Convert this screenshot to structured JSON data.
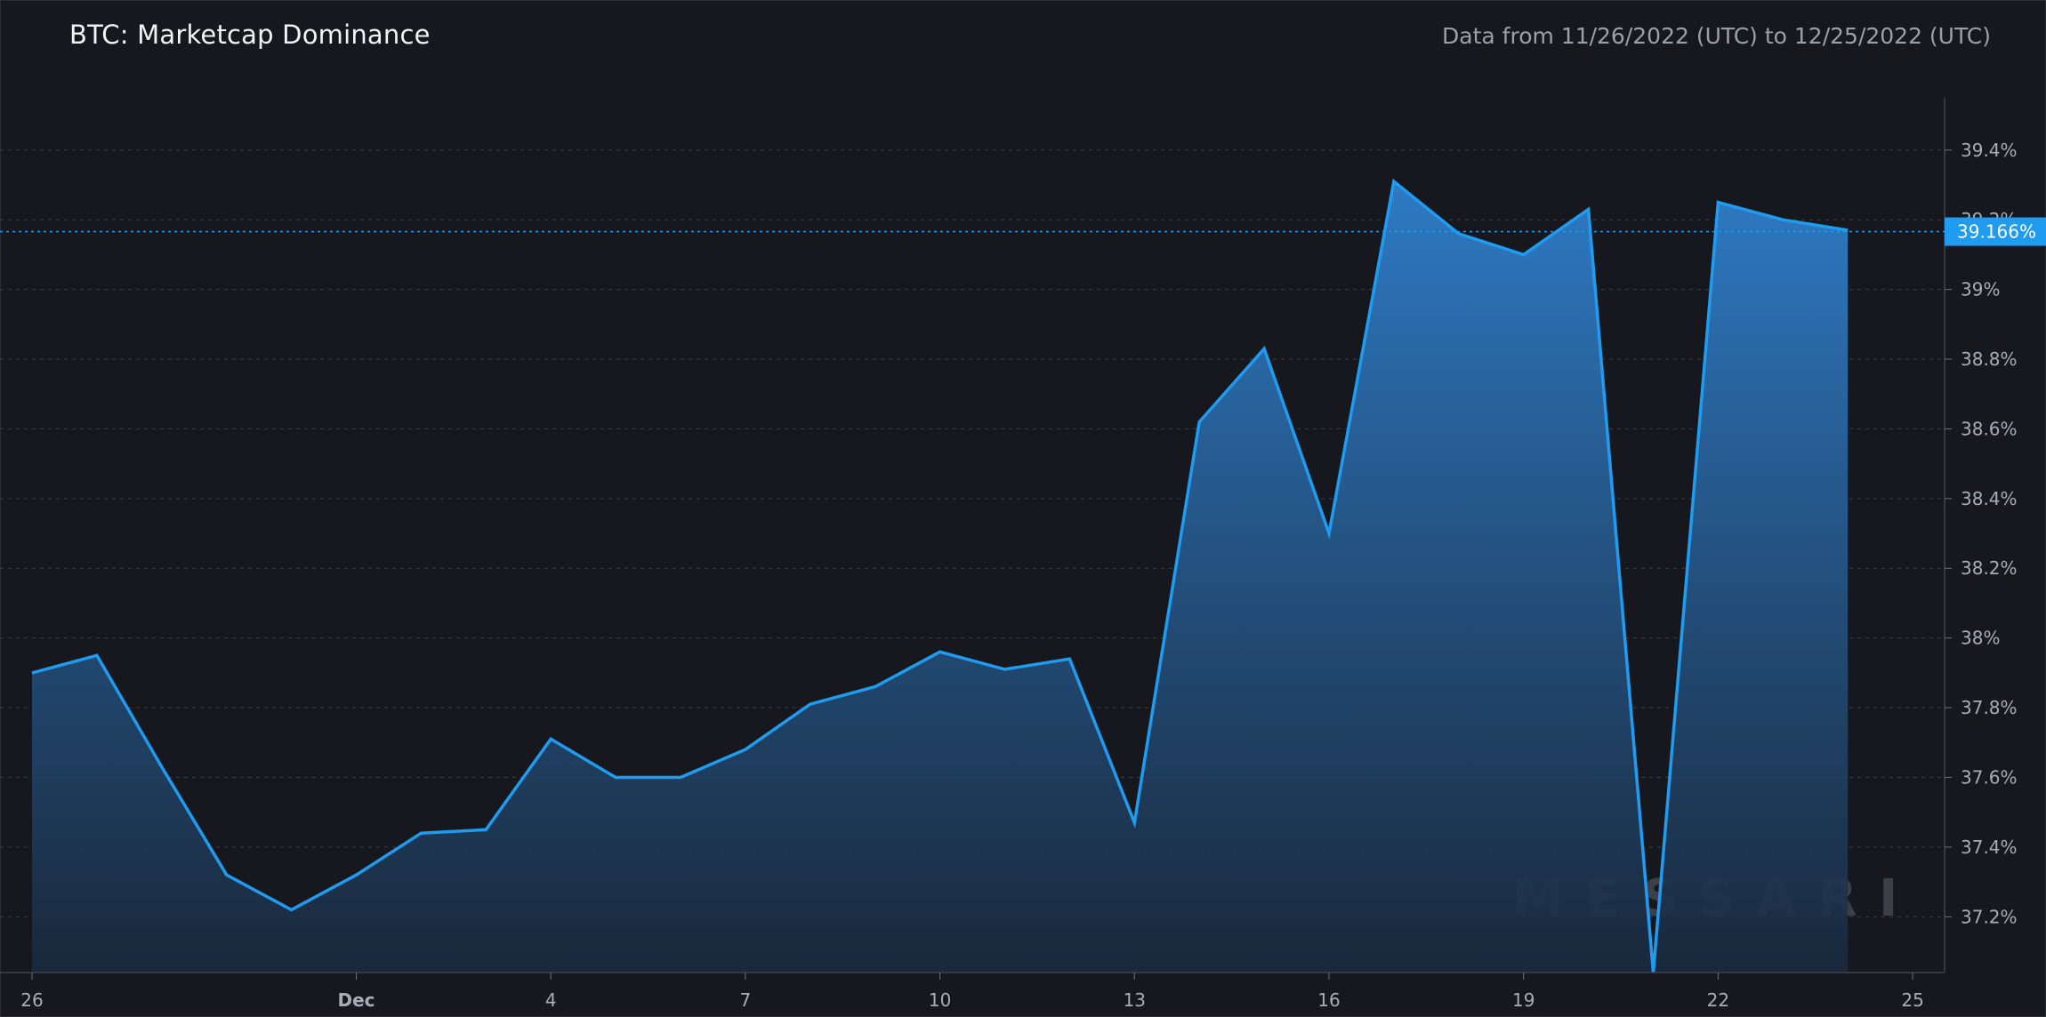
{
  "header": {
    "title": "BTC: Marketcap Dominance",
    "date_range": "Data from 11/26/2022 (UTC) to 12/25/2022 (UTC)"
  },
  "watermark": "MESSARI",
  "colors": {
    "background": "#16181e",
    "line": "#1f9bf0",
    "grid": "#3a3e47",
    "badge": "#1f9bf0"
  },
  "chart_data": {
    "type": "area",
    "title": "BTC: Marketcap Dominance",
    "xlabel": "",
    "ylabel": "",
    "x": [
      "2022-11-26",
      "2022-11-27",
      "2022-11-28",
      "2022-11-29",
      "2022-11-30",
      "2022-12-01",
      "2022-12-02",
      "2022-12-03",
      "2022-12-04",
      "2022-12-05",
      "2022-12-06",
      "2022-12-07",
      "2022-12-08",
      "2022-12-09",
      "2022-12-10",
      "2022-12-11",
      "2022-12-12",
      "2022-12-13",
      "2022-12-14",
      "2022-12-15",
      "2022-12-16",
      "2022-12-17",
      "2022-12-18",
      "2022-12-19",
      "2022-12-20",
      "2022-12-21",
      "2022-12-22",
      "2022-12-23",
      "2022-12-24"
    ],
    "values": [
      37.9,
      37.95,
      37.63,
      37.32,
      37.22,
      37.32,
      37.44,
      37.45,
      37.71,
      37.6,
      37.6,
      37.68,
      37.81,
      37.86,
      37.96,
      37.91,
      37.94,
      37.47,
      38.62,
      38.83,
      38.3,
      39.31,
      39.16,
      39.1,
      39.23,
      37.04,
      39.25,
      39.2,
      39.17
    ],
    "current_value": 39.166,
    "current_label": "39.166%",
    "ylim": [
      37.04,
      39.55
    ],
    "y_ticks": [
      {
        "value": 37.2,
        "label": "37.2%"
      },
      {
        "value": 37.4,
        "label": "37.4%"
      },
      {
        "value": 37.6,
        "label": "37.6%"
      },
      {
        "value": 37.8,
        "label": "37.8%"
      },
      {
        "value": 38.0,
        "label": "38%"
      },
      {
        "value": 38.2,
        "label": "38.2%"
      },
      {
        "value": 38.4,
        "label": "38.4%"
      },
      {
        "value": 38.6,
        "label": "38.6%"
      },
      {
        "value": 38.8,
        "label": "38.8%"
      },
      {
        "value": 39.0,
        "label": "39%"
      },
      {
        "value": 39.2,
        "label": "39.2%"
      },
      {
        "value": 39.4,
        "label": "39.4%"
      }
    ],
    "x_ticks": [
      {
        "date": "2022-11-26",
        "label": "26",
        "bold": false
      },
      {
        "date": "2022-12-01",
        "label": "Dec",
        "bold": true
      },
      {
        "date": "2022-12-04",
        "label": "4",
        "bold": false
      },
      {
        "date": "2022-12-07",
        "label": "7",
        "bold": false
      },
      {
        "date": "2022-12-10",
        "label": "10",
        "bold": false
      },
      {
        "date": "2022-12-13",
        "label": "13",
        "bold": false
      },
      {
        "date": "2022-12-16",
        "label": "16",
        "bold": false
      },
      {
        "date": "2022-12-19",
        "label": "19",
        "bold": false
      },
      {
        "date": "2022-12-22",
        "label": "22",
        "bold": false
      },
      {
        "date": "2022-12-25",
        "label": "25",
        "bold": false
      }
    ],
    "grid": true,
    "legend": "none"
  }
}
